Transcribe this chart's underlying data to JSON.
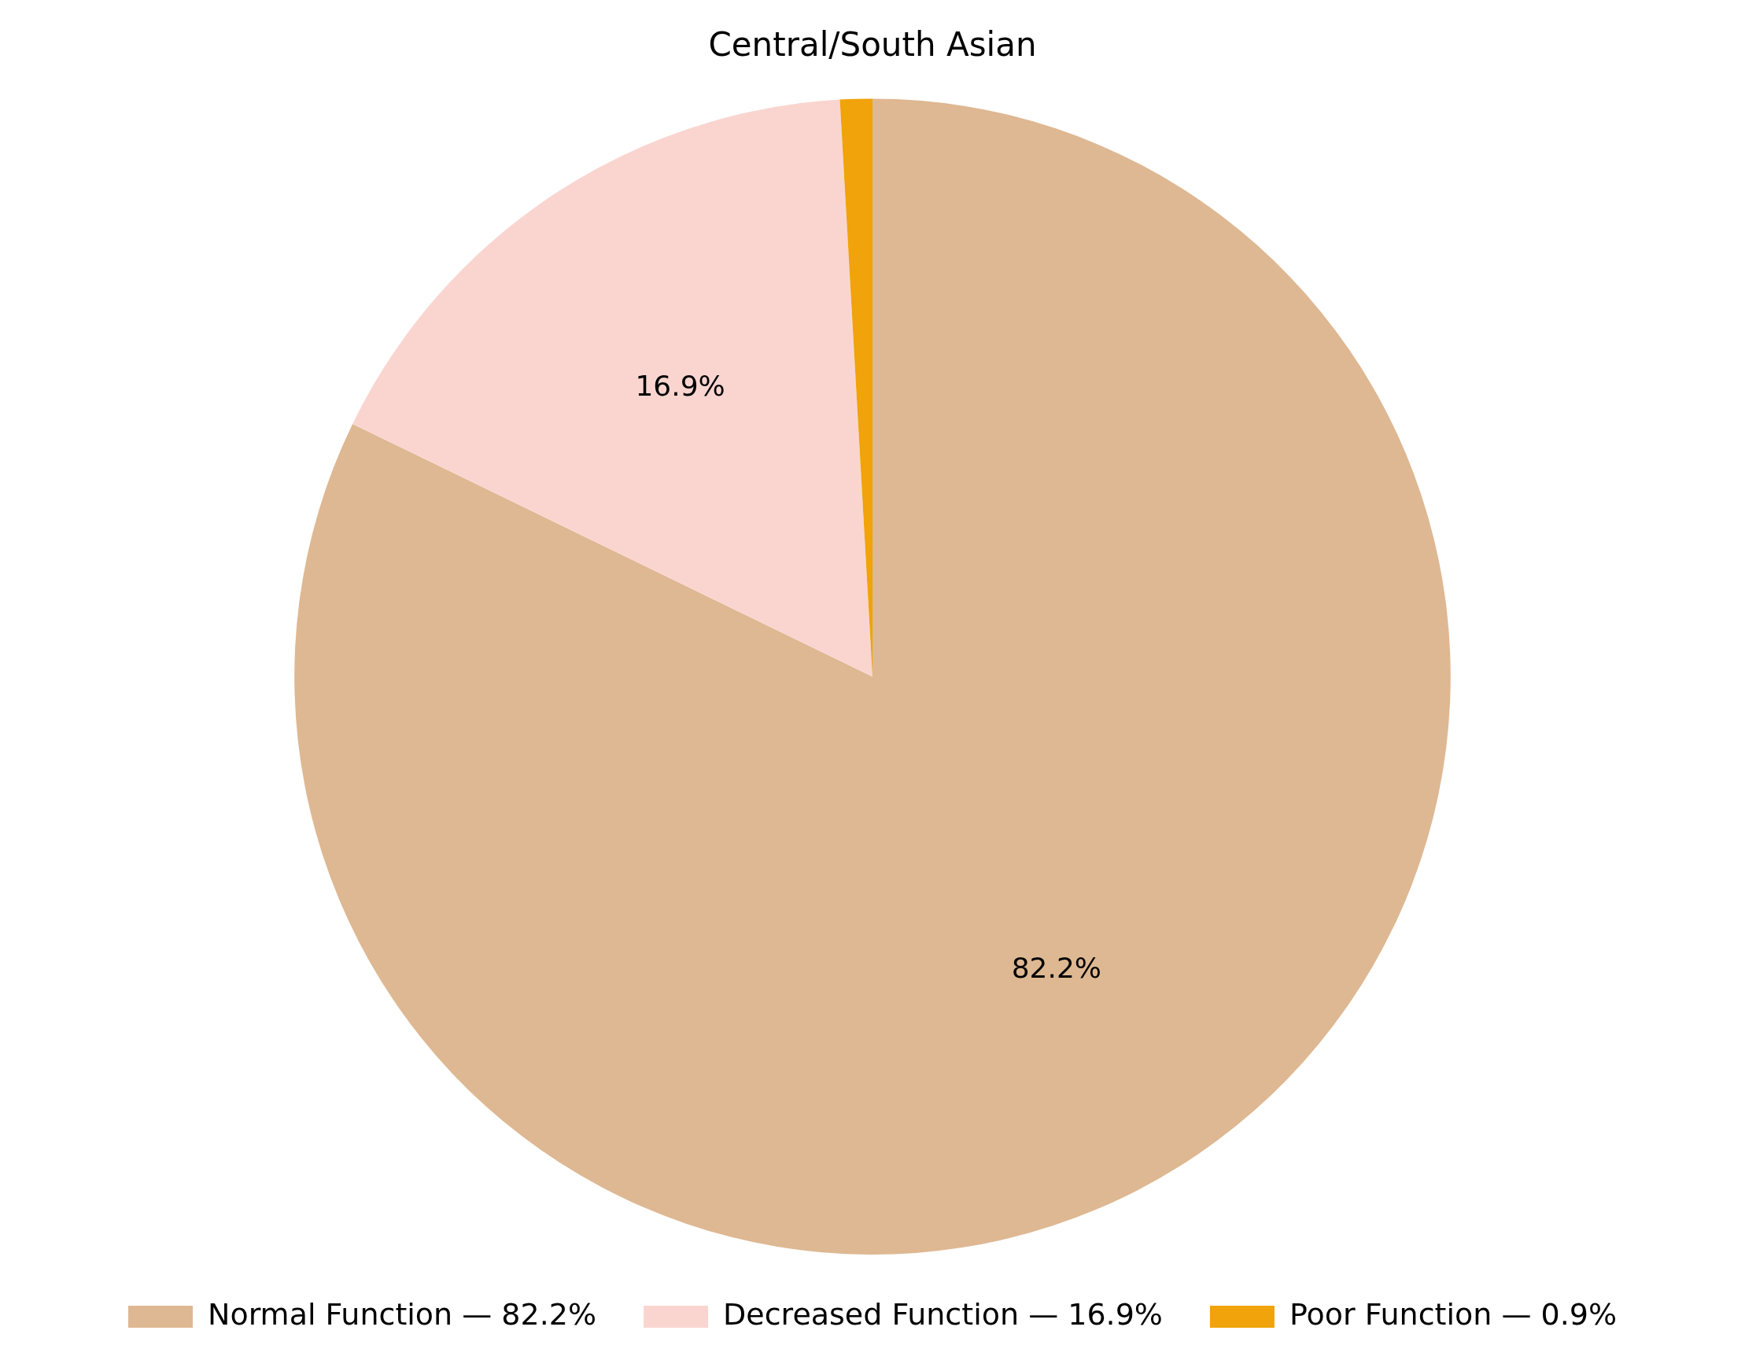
{
  "chart_data": {
    "type": "pie",
    "title": "Central/South Asian",
    "categories": [
      "Normal Function — 82.2%",
      "Decreased Function — 16.9%",
      "Poor Function — 0.9%"
    ],
    "values": [
      82.2,
      16.9,
      0.9
    ],
    "value_labels": [
      "82.2%",
      "16.9%",
      null
    ],
    "colors": [
      "#deb892",
      "#fad5d0",
      "#f0a30a"
    ],
    "legend": "bottom"
  }
}
